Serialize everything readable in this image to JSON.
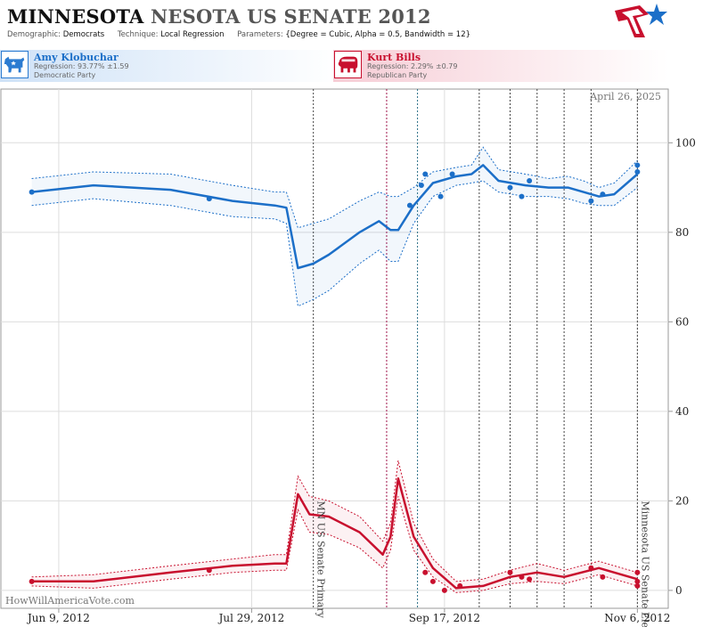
{
  "header": {
    "title_state": "MINNESOTA",
    "title_rest": "NESOTA US SENATE 2012",
    "demographic_label": "Demographic:",
    "demographic_value": "Democrats",
    "technique_label": "Technique:",
    "technique_value": "Local Regression",
    "parameters_label": "Parameters:",
    "parameters_value": "{Degree = Cubic, Alpha = 0.5, Bandwidth = 12}"
  },
  "candidates": [
    {
      "name": "Amy Klobuchar",
      "regression": "Regression: 93.77% ±1.59",
      "party": "Democratic Party",
      "color": "#1c6fc8"
    },
    {
      "name": "Kurt Bills",
      "regression": "Regression: 2.29% ±0.79",
      "party": "Republican Party",
      "color": "#c8102e"
    }
  ],
  "watermark": "HowWillAmericaVote.com",
  "chart_data": {
    "type": "line",
    "date_label": "April 26, 2025",
    "x_ticks": [
      "Jun 9, 2012",
      "Jul 29, 2012",
      "Sep 17, 2012",
      "Nov 6, 2012"
    ],
    "y_ticks": [
      0,
      20,
      40,
      60,
      80,
      100
    ],
    "ylim": [
      -4,
      112
    ],
    "xlim": [
      "2012-05-25",
      "2012-11-14"
    ],
    "events": [
      {
        "date": "2012-08-14",
        "label": "MN US Senate Primary"
      },
      {
        "date": "2012-11-06",
        "label": "Minnesota US Senate Election"
      }
    ],
    "vertical_lines": [
      {
        "date": "2012-08-14",
        "color": "#444444"
      },
      {
        "date": "2012-09-02",
        "color": "#a0144a"
      },
      {
        "date": "2012-09-10",
        "color": "#2a6f86"
      },
      {
        "date": "2012-09-26",
        "color": "#444444"
      },
      {
        "date": "2012-10-04",
        "color": "#444444"
      },
      {
        "date": "2012-10-11",
        "color": "#444444"
      },
      {
        "date": "2012-10-18",
        "color": "#444444"
      },
      {
        "date": "2012-10-25",
        "color": "#444444"
      },
      {
        "date": "2012-11-06",
        "color": "#444444"
      }
    ],
    "series": [
      {
        "name": "Amy Klobuchar",
        "color": "#1c6fc8",
        "line": [
          [
            "2012-06-02",
            89
          ],
          [
            "2012-06-18",
            90.5
          ],
          [
            "2012-07-08",
            89.5
          ],
          [
            "2012-07-24",
            87
          ],
          [
            "2012-08-04",
            86
          ],
          [
            "2012-08-07",
            85.5
          ],
          [
            "2012-08-10",
            72
          ],
          [
            "2012-08-14",
            73
          ],
          [
            "2012-08-18",
            75
          ],
          [
            "2012-08-26",
            80
          ],
          [
            "2012-08-31",
            82.5
          ],
          [
            "2012-09-03",
            80.5
          ],
          [
            "2012-09-05",
            80.5
          ],
          [
            "2012-09-09",
            86
          ],
          [
            "2012-09-14",
            91
          ],
          [
            "2012-09-20",
            92.5
          ],
          [
            "2012-09-24",
            93
          ],
          [
            "2012-09-27",
            95
          ],
          [
            "2012-10-01",
            91.5
          ],
          [
            "2012-10-08",
            90.5
          ],
          [
            "2012-10-14",
            90
          ],
          [
            "2012-10-19",
            90
          ],
          [
            "2012-10-23",
            89
          ],
          [
            "2012-10-27",
            88
          ],
          [
            "2012-10-31",
            88.5
          ],
          [
            "2012-11-06",
            93
          ]
        ],
        "upper": [
          [
            "2012-06-02",
            92
          ],
          [
            "2012-06-18",
            93.5
          ],
          [
            "2012-07-08",
            93
          ],
          [
            "2012-07-24",
            90.5
          ],
          [
            "2012-08-04",
            89
          ],
          [
            "2012-08-07",
            89
          ],
          [
            "2012-08-10",
            81
          ],
          [
            "2012-08-14",
            82
          ],
          [
            "2012-08-18",
            83
          ],
          [
            "2012-08-26",
            87
          ],
          [
            "2012-08-31",
            89
          ],
          [
            "2012-09-03",
            88
          ],
          [
            "2012-09-05",
            88
          ],
          [
            "2012-09-09",
            90
          ],
          [
            "2012-09-14",
            93.5
          ],
          [
            "2012-09-20",
            94.5
          ],
          [
            "2012-09-24",
            95
          ],
          [
            "2012-09-27",
            99
          ],
          [
            "2012-10-01",
            94
          ],
          [
            "2012-10-08",
            93
          ],
          [
            "2012-10-14",
            92
          ],
          [
            "2012-10-19",
            92.5
          ],
          [
            "2012-10-23",
            91.5
          ],
          [
            "2012-10-27",
            90
          ],
          [
            "2012-10-31",
            91
          ],
          [
            "2012-11-06",
            96
          ]
        ],
        "lower": [
          [
            "2012-06-02",
            86
          ],
          [
            "2012-06-18",
            87.5
          ],
          [
            "2012-07-08",
            86
          ],
          [
            "2012-07-24",
            83.5
          ],
          [
            "2012-08-04",
            83
          ],
          [
            "2012-08-07",
            82
          ],
          [
            "2012-08-10",
            63.5
          ],
          [
            "2012-08-14",
            65
          ],
          [
            "2012-08-18",
            67
          ],
          [
            "2012-08-26",
            73
          ],
          [
            "2012-08-31",
            76
          ],
          [
            "2012-09-03",
            73.5
          ],
          [
            "2012-09-05",
            73.5
          ],
          [
            "2012-09-09",
            82
          ],
          [
            "2012-09-14",
            88
          ],
          [
            "2012-09-20",
            90.5
          ],
          [
            "2012-09-24",
            91
          ],
          [
            "2012-09-27",
            91.5
          ],
          [
            "2012-10-01",
            89
          ],
          [
            "2012-10-08",
            88
          ],
          [
            "2012-10-14",
            88
          ],
          [
            "2012-10-19",
            87.5
          ],
          [
            "2012-10-23",
            86.5
          ],
          [
            "2012-10-27",
            86
          ],
          [
            "2012-10-31",
            86
          ],
          [
            "2012-11-06",
            90
          ]
        ],
        "points": [
          [
            "2012-06-02",
            89
          ],
          [
            "2012-07-18",
            87.5
          ],
          [
            "2012-09-08",
            86
          ],
          [
            "2012-09-11",
            90.5
          ],
          [
            "2012-09-12",
            93
          ],
          [
            "2012-09-16",
            88
          ],
          [
            "2012-09-19",
            93
          ],
          [
            "2012-10-04",
            90
          ],
          [
            "2012-10-07",
            88
          ],
          [
            "2012-10-09",
            91.5
          ],
          [
            "2012-10-25",
            87
          ],
          [
            "2012-10-28",
            88.5
          ],
          [
            "2012-11-06",
            95
          ],
          [
            "2012-11-06",
            93.5
          ]
        ]
      },
      {
        "name": "Kurt Bills",
        "color": "#c8102e",
        "line": [
          [
            "2012-06-02",
            2
          ],
          [
            "2012-06-18",
            2
          ],
          [
            "2012-07-08",
            4
          ],
          [
            "2012-07-24",
            5.5
          ],
          [
            "2012-08-04",
            6
          ],
          [
            "2012-08-07",
            6
          ],
          [
            "2012-08-10",
            21.5
          ],
          [
            "2012-08-13",
            17
          ],
          [
            "2012-08-18",
            16.5
          ],
          [
            "2012-08-26",
            13
          ],
          [
            "2012-09-01",
            8
          ],
          [
            "2012-09-03",
            12
          ],
          [
            "2012-09-05",
            25
          ],
          [
            "2012-09-09",
            12
          ],
          [
            "2012-09-14",
            5
          ],
          [
            "2012-09-20",
            0.5
          ],
          [
            "2012-09-27",
            1
          ],
          [
            "2012-10-04",
            3
          ],
          [
            "2012-10-11",
            4
          ],
          [
            "2012-10-18",
            3
          ],
          [
            "2012-10-27",
            5
          ],
          [
            "2012-10-31",
            4
          ],
          [
            "2012-11-06",
            2.5
          ]
        ],
        "upper": [
          [
            "2012-06-02",
            3
          ],
          [
            "2012-06-18",
            3.5
          ],
          [
            "2012-07-08",
            5.5
          ],
          [
            "2012-07-24",
            7
          ],
          [
            "2012-08-04",
            8
          ],
          [
            "2012-08-07",
            8
          ],
          [
            "2012-08-10",
            25.5
          ],
          [
            "2012-08-13",
            21
          ],
          [
            "2012-08-18",
            20
          ],
          [
            "2012-08-26",
            16.5
          ],
          [
            "2012-09-01",
            11
          ],
          [
            "2012-09-03",
            15
          ],
          [
            "2012-09-05",
            29
          ],
          [
            "2012-09-09",
            15
          ],
          [
            "2012-09-14",
            7
          ],
          [
            "2012-09-20",
            2
          ],
          [
            "2012-09-27",
            2.5
          ],
          [
            "2012-10-04",
            4.5
          ],
          [
            "2012-10-11",
            6
          ],
          [
            "2012-10-18",
            4.5
          ],
          [
            "2012-10-27",
            6.5
          ],
          [
            "2012-10-31",
            5.5
          ],
          [
            "2012-11-06",
            4
          ]
        ],
        "lower": [
          [
            "2012-06-02",
            1
          ],
          [
            "2012-06-18",
            0.5
          ],
          [
            "2012-07-08",
            2.5
          ],
          [
            "2012-07-24",
            4
          ],
          [
            "2012-08-04",
            4.5
          ],
          [
            "2012-08-07",
            4.5
          ],
          [
            "2012-08-10",
            18
          ],
          [
            "2012-08-13",
            13
          ],
          [
            "2012-08-18",
            12.5
          ],
          [
            "2012-08-26",
            9.5
          ],
          [
            "2012-09-01",
            5
          ],
          [
            "2012-09-03",
            9
          ],
          [
            "2012-09-05",
            21
          ],
          [
            "2012-09-09",
            9
          ],
          [
            "2012-09-14",
            3
          ],
          [
            "2012-09-20",
            -0.5
          ],
          [
            "2012-09-27",
            0
          ],
          [
            "2012-10-04",
            1.5
          ],
          [
            "2012-10-11",
            2
          ],
          [
            "2012-10-18",
            1.5
          ],
          [
            "2012-10-27",
            3.5
          ],
          [
            "2012-10-31",
            2.5
          ],
          [
            "2012-11-06",
            1
          ]
        ],
        "points": [
          [
            "2012-06-02",
            2
          ],
          [
            "2012-07-18",
            4.5
          ],
          [
            "2012-09-12",
            4
          ],
          [
            "2012-09-14",
            2
          ],
          [
            "2012-09-17",
            0
          ],
          [
            "2012-09-21",
            1
          ],
          [
            "2012-10-04",
            4
          ],
          [
            "2012-10-07",
            3
          ],
          [
            "2012-10-09",
            2.5
          ],
          [
            "2012-10-25",
            5
          ],
          [
            "2012-10-28",
            3
          ],
          [
            "2012-11-06",
            4
          ],
          [
            "2012-11-06",
            1
          ],
          [
            "2012-11-06",
            2
          ]
        ]
      }
    ]
  }
}
